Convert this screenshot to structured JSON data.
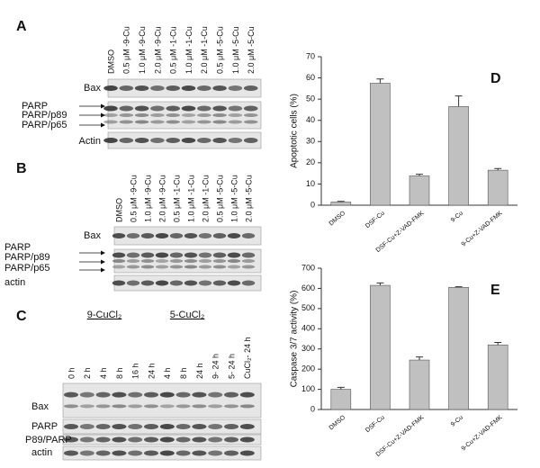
{
  "blots": [
    {
      "panel": "A",
      "lanes": [
        "DMSO",
        "0.5 μM -9-Cu",
        "1.0 μM -9-Cu",
        "2.0 μM -9-Cu",
        "0.5 μM -1-Cu",
        "1.0 μM -1-Cu",
        "2.0 μM -1-Cu",
        "0.5 μM -5-Cu",
        "1.0 μM -5-Cu",
        "2.0 μM -5-Cu"
      ],
      "rows": [
        "Bax",
        "PARP",
        "PARP/p89",
        "PARP/p65",
        "Actin"
      ]
    },
    {
      "panel": "B",
      "lanes": [
        "DMSO",
        "0.5 μM -9-Cu",
        "1.0 μM -9-Cu",
        "2.0 μM -9-Cu",
        "0.5 μM -1-Cu",
        "1.0 μM -1-Cu",
        "2.0 μM -1-Cu",
        "0.5 μM -5-Cu",
        "1.0 μM -5-Cu",
        "2.0 μM -5-Cu"
      ],
      "rows": [
        "Bax",
        "PARP",
        "PARP/p89",
        "PARP/p65",
        "actin"
      ]
    },
    {
      "panel": "C",
      "groups": [
        "9-CuCl₂",
        "5-CuCl₂"
      ],
      "lanes": [
        "0 h",
        "2 h",
        "4 h",
        "8 h",
        "16 h",
        "24 h",
        "4 h",
        "8 h",
        "24 h",
        "9- 24 h",
        "5- 24 h",
        "CuCl₂- 24 h"
      ],
      "rows": [
        "Bax",
        "PARP",
        "P89/PARP",
        "actin"
      ]
    }
  ],
  "chart_data": [
    {
      "type": "bar",
      "panel": "D",
      "ylabel": "Apoptotic cells (%)",
      "categories": [
        "DMSO",
        "DSF-Cu",
        "DSF-Cu+Z-VAD-FMK",
        "9-Cu",
        "9-Cu+Z-VAD-FMK"
      ],
      "values": [
        1.5,
        57.5,
        13.8,
        46.5,
        16.5
      ],
      "errors": [
        0.3,
        2,
        0.8,
        5,
        0.8
      ],
      "color": "#c0c0c0",
      "ylim": [
        0,
        70
      ],
      "yticks": [
        0,
        10,
        20,
        30,
        40,
        50,
        60,
        70
      ]
    },
    {
      "type": "bar",
      "panel": "E",
      "ylabel": "Caspase 3/7 activity (%)",
      "categories": [
        "DMSO",
        "DSF-Cu",
        "DSF-Cu+Z-VAD-FMK",
        "9-Cu",
        "9-Cu+Z-VAD-FMK"
      ],
      "values": [
        100,
        615,
        245,
        605,
        320
      ],
      "errors": [
        10,
        12,
        15,
        3,
        12
      ],
      "color": "#c0c0c0",
      "ylim": [
        0,
        700
      ],
      "yticks": [
        0,
        100,
        200,
        300,
        400,
        500,
        600,
        700
      ]
    }
  ]
}
